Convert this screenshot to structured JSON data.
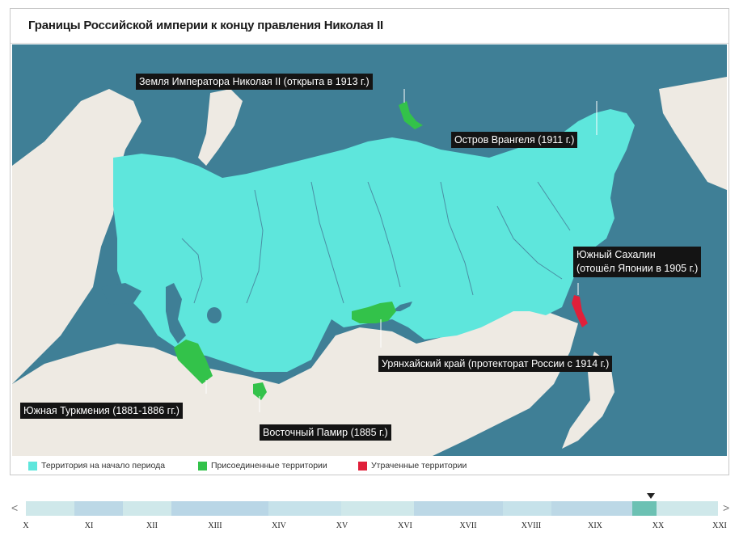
{
  "title": "Границы Российской империи к концу правления Николая II",
  "labels": {
    "nicholas_land": "Земля Императора Николая II (открыта в 1913 г.)",
    "wrangel": "Остров Врангеля (1911 г.)",
    "sakhalin_line1": "Южный Сахалин",
    "sakhalin_line2": "(отошёл Японии в 1905 г.)",
    "uryankhai": "Урянхайский край (протекторат России с 1914 г.)",
    "turkmenia": "Южная Туркмения (1881-1886 гг.)",
    "pamir": "Восточный Памир (1885 г.)"
  },
  "legend": [
    {
      "label": "Территория на начало периода",
      "color": "#5ee6dc"
    },
    {
      "label": "Присоединенные территории",
      "color": "#33c24a"
    },
    {
      "label": "Утраченные территории",
      "color": "#e0203a"
    }
  ],
  "colors": {
    "sea": "#3f7f96",
    "land": "#eeeae3",
    "empire": "#5ee6dc",
    "annexed": "#33c24a",
    "lost": "#e0203a"
  },
  "timeline": {
    "ticks": [
      "X",
      "XI",
      "XII",
      "XIII",
      "XIV",
      "XV",
      "XVI",
      "XVII",
      "XVIII",
      "XIX",
      "XX",
      "XXI"
    ],
    "selected": "XX",
    "left_arrow": "<",
    "right_arrow": ">"
  }
}
